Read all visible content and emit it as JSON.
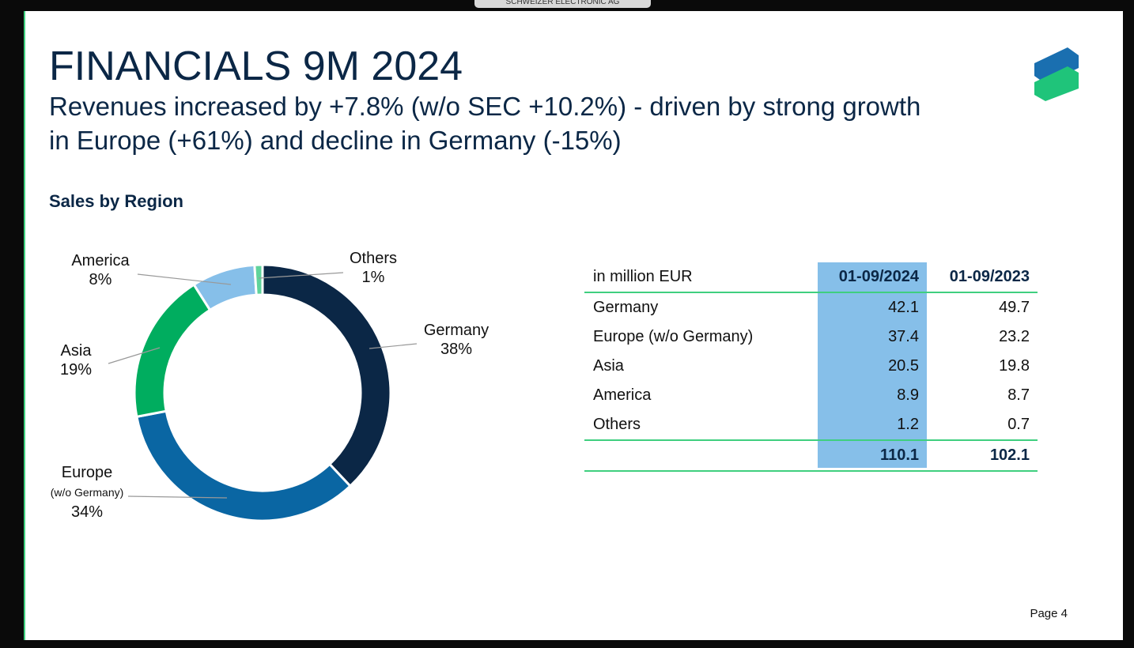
{
  "window": {
    "tab_label": "SCHWEIZER ELECTRONIC AG"
  },
  "header": {
    "title": "FINANCIALS 9M 2024",
    "subtitle_lines": [
      "Revenues increased by +7.8% (w/o SEC +10.2%) - driven by strong growth",
      "in Europe (+61%) and decline in Germany (-15%)"
    ]
  },
  "chart_data": {
    "type": "pie",
    "title": "Sales by Region",
    "categories": [
      "Germany",
      "Europe",
      "Asia",
      "America",
      "Others"
    ],
    "category_sublabels": [
      null,
      "(w/o Germany)",
      null,
      null,
      null
    ],
    "values": [
      38,
      34,
      19,
      8,
      1
    ],
    "value_labels": [
      "38%",
      "34%",
      "19%",
      "8%",
      "1%"
    ],
    "colors": [
      "#0b2746",
      "#0a66a3",
      "#00ad5f",
      "#86bfe9",
      "#5fd39b"
    ]
  },
  "table": {
    "header": [
      "in million EUR",
      "01-09/2024",
      "01-09/2023"
    ],
    "rows": [
      [
        "Germany",
        42.1,
        49.7
      ],
      [
        "Europe (w/o Germany)",
        37.4,
        23.2
      ],
      [
        "Asia",
        20.5,
        19.8
      ],
      [
        "America",
        8.9,
        8.7
      ],
      [
        "Others",
        1.2,
        0.7
      ]
    ],
    "total": [
      110.1,
      102.1
    ]
  },
  "footer": {
    "page": "Page 4"
  }
}
